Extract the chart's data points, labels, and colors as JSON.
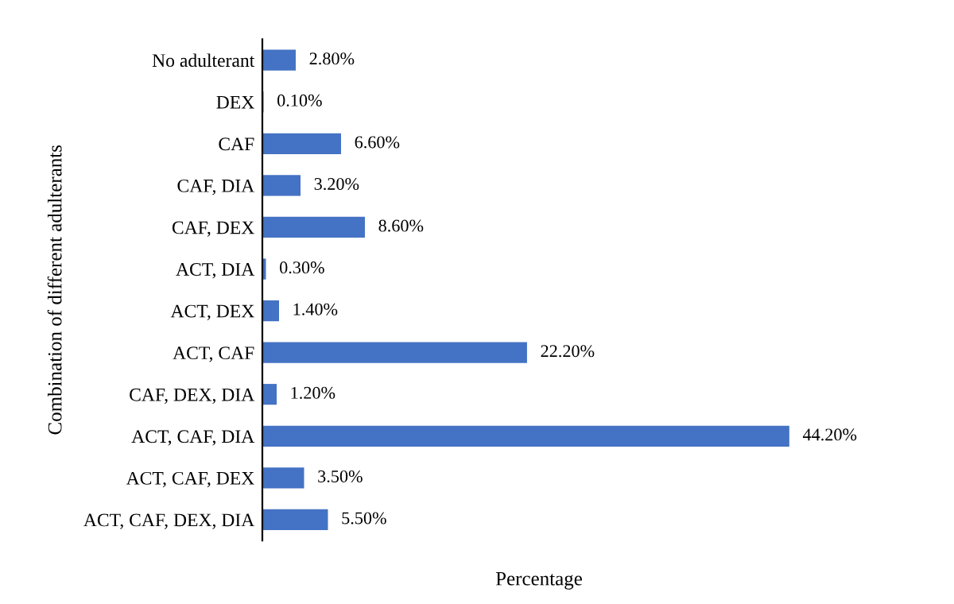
{
  "chart_data": {
    "type": "bar",
    "orientation": "horizontal",
    "xlabel": "Percentage",
    "ylabel": "Combination of different adulterants",
    "categories": [
      "No adulterant",
      "DEX",
      "CAF",
      "CAF, DIA",
      "CAF, DEX",
      "ACT, DIA",
      "ACT, DEX",
      "ACT, CAF",
      "CAF, DEX, DIA",
      "ACT, CAF, DIA",
      "ACT, CAF, DEX",
      "ACT, CAF, DEX, DIA"
    ],
    "values": [
      2.8,
      0.1,
      6.6,
      3.2,
      8.6,
      0.3,
      1.4,
      22.2,
      1.2,
      44.2,
      3.5,
      5.5
    ],
    "value_labels": [
      "2.80%",
      "0.10%",
      "6.60%",
      "3.20%",
      "8.60%",
      "0.30%",
      "1.40%",
      "22.20%",
      "1.20%",
      "44.20%",
      "3.50%",
      "5.50%"
    ],
    "color": "#4472c4",
    "tick_labels": "y",
    "grid": false
  }
}
